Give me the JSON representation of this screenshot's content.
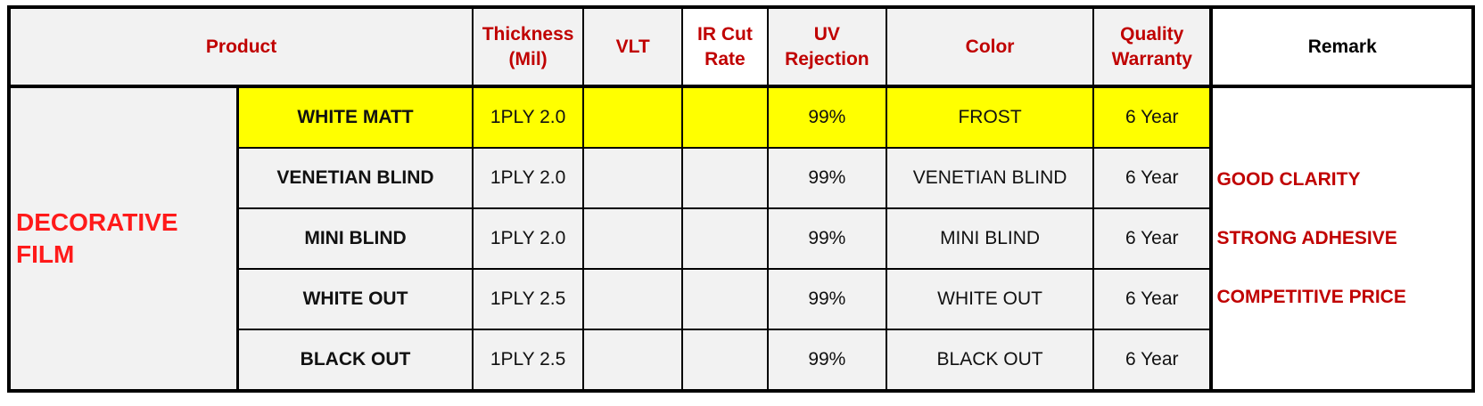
{
  "headers": {
    "product": "Product",
    "thickness": "Thickness\n(Mil)",
    "vlt": "VLT",
    "ir": "IR Cut\nRate",
    "uv": "UV\nRejection",
    "color": "Color",
    "warranty": "Quality\nWarranty",
    "remark": "Remark"
  },
  "category": [
    "DECORATIVE",
    "FILM"
  ],
  "rows": [
    {
      "name": "WHITE MATT",
      "thickness": "1PLY 2.0",
      "vlt": "",
      "ir": "",
      "uv": "99%",
      "color": "FROST",
      "warranty": "6 Year"
    },
    {
      "name": "VENETIAN BLIND",
      "thickness": "1PLY 2.0",
      "vlt": "",
      "ir": "",
      "uv": "99%",
      "color": "VENETIAN BLIND",
      "warranty": "6 Year"
    },
    {
      "name": "MINI BLIND",
      "thickness": "1PLY 2.0",
      "vlt": "",
      "ir": "",
      "uv": "99%",
      "color": "MINI BLIND",
      "warranty": "6 Year"
    },
    {
      "name": "WHITE OUT",
      "thickness": "1PLY 2.5",
      "vlt": "",
      "ir": "",
      "uv": "99%",
      "color": "WHITE OUT",
      "warranty": "6 Year"
    },
    {
      "name": "BLACK OUT",
      "thickness": "1PLY 2.5",
      "vlt": "",
      "ir": "",
      "uv": "99%",
      "color": "BLACK OUT",
      "warranty": "6 Year"
    }
  ],
  "remarks": [
    "GOOD CLARITY",
    "STRONG ADHESIVE",
    "COMPETITIVE PRICE"
  ],
  "colors": {
    "highlight": "#ffff00",
    "header_text": "#c00000",
    "category_text": "#ff1a1a"
  }
}
